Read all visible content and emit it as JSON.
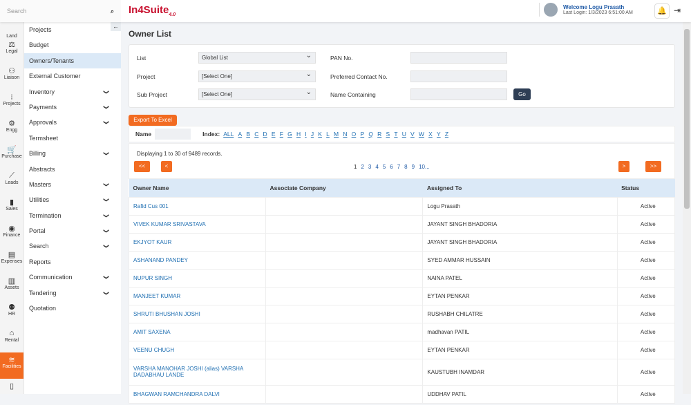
{
  "search": {
    "placeholder": "Search"
  },
  "logo": {
    "text": "In4Suite",
    "version": "4.0"
  },
  "user": {
    "welcome": "Welcome Logu Prasath",
    "last_login": "Last Login: 1/3/2023 6:51:00 AM"
  },
  "rail": [
    {
      "label": "Land",
      "icon": "land-icon"
    },
    {
      "label": "Legal",
      "icon": "scales-icon"
    },
    {
      "label": "Liaison",
      "icon": "person-icon"
    },
    {
      "label": "Projects",
      "icon": "projects-icon"
    },
    {
      "label": "Engg",
      "icon": "gears-icon"
    },
    {
      "label": "Purchase",
      "icon": "cart-icon"
    },
    {
      "label": "Leads",
      "icon": "chart-line-icon"
    },
    {
      "label": "Sales",
      "icon": "bar-chart-icon"
    },
    {
      "label": "Finance",
      "icon": "coin-icon"
    },
    {
      "label": "Expenses",
      "icon": "receipt-icon"
    },
    {
      "label": "Assets",
      "icon": "building-icon"
    },
    {
      "label": "HR",
      "icon": "people-icon"
    },
    {
      "label": "Rental",
      "icon": "house-icon"
    },
    {
      "label": "Facilities",
      "icon": "pool-icon",
      "active": true
    },
    {
      "label": "",
      "icon": "file-icon"
    }
  ],
  "menu": [
    {
      "label": "Projects"
    },
    {
      "label": "Budget"
    },
    {
      "label": "Owners/Tenants",
      "active": true
    },
    {
      "label": "External Customer"
    },
    {
      "label": "Inventory",
      "sub": true
    },
    {
      "label": "Payments",
      "sub": true
    },
    {
      "label": "Approvals",
      "sub": true
    },
    {
      "label": "Termsheet"
    },
    {
      "label": "Billing",
      "sub": true
    },
    {
      "label": "Abstracts"
    },
    {
      "label": "Masters",
      "sub": true
    },
    {
      "label": "Utilities",
      "sub": true
    },
    {
      "label": "Termination",
      "sub": true
    },
    {
      "label": "Portal",
      "sub": true
    },
    {
      "label": "Search",
      "sub": true
    },
    {
      "label": "Reports"
    },
    {
      "label": "Communication",
      "sub": true
    },
    {
      "label": "Tendering",
      "sub": true
    },
    {
      "label": "Quotation"
    }
  ],
  "page": {
    "title": "Owner List"
  },
  "filter": {
    "list_label": "List",
    "list_value": "Global List",
    "project_label": "Project",
    "project_value": "[Select One]",
    "subproject_label": "Sub Project",
    "subproject_value": "[Select One]",
    "pan_label": "PAN No.",
    "contact_label": "Preferred Contact No.",
    "name_label": "Name Containing",
    "go": "Go"
  },
  "export": "Export To Excel",
  "index": {
    "name_label": "Name",
    "label": "Index:",
    "letters": [
      "ALL",
      "A",
      "B",
      "C",
      "D",
      "E",
      "F",
      "G",
      "H",
      "I",
      "J",
      "K",
      "L",
      "M",
      "N",
      "O",
      "P",
      "Q",
      "R",
      "S",
      "T",
      "U",
      "V",
      "W",
      "X",
      "Y",
      "Z"
    ]
  },
  "pager": {
    "display": "Displaying 1 to 30 of 9489 records.",
    "first": "<<",
    "prev": "<",
    "next": ">",
    "last": ">>",
    "pages": [
      "1",
      "2",
      "3",
      "4",
      "5",
      "6",
      "7",
      "8",
      "9",
      "10..."
    ]
  },
  "table": {
    "headers": [
      "Owner Name",
      "Associate Company",
      "Assigned To",
      "Status"
    ],
    "rows": [
      [
        "Rafid Cus 001",
        "",
        "Logu Prasath",
        "Active"
      ],
      [
        "VIVEK KUMAR SRIVASTAVA",
        "",
        "JAYANT SINGH BHADORIA",
        "Active"
      ],
      [
        "EKJYOT KAUR",
        "",
        "JAYANT SINGH BHADORIA",
        "Active"
      ],
      [
        "ASHANAND PANDEY",
        "",
        "SYED AMMAR HUSSAIN",
        "Active"
      ],
      [
        "NUPUR SINGH",
        "",
        "NAINA PATEL",
        "Active"
      ],
      [
        "MANJEET KUMAR",
        "",
        "EYTAN PENKAR",
        "Active"
      ],
      [
        "SHRUTI BHUSHAN JOSHI",
        "",
        "RUSHABH CHILATRE",
        "Active"
      ],
      [
        "AMIT SAXENA",
        "",
        "madhavan PATIL",
        "Active"
      ],
      [
        "VEENU CHUGH",
        "",
        "EYTAN PENKAR",
        "Active"
      ],
      [
        "VARSHA MANOHAR JOSHI (alias) VARSHA DADABHAU LANDE",
        "",
        "KAUSTUBH INAMDAR",
        "Active"
      ],
      [
        "BHAGWAN RAMCHANDRA DALVI",
        "",
        "UDDHAV PATIL",
        "Active"
      ]
    ]
  }
}
